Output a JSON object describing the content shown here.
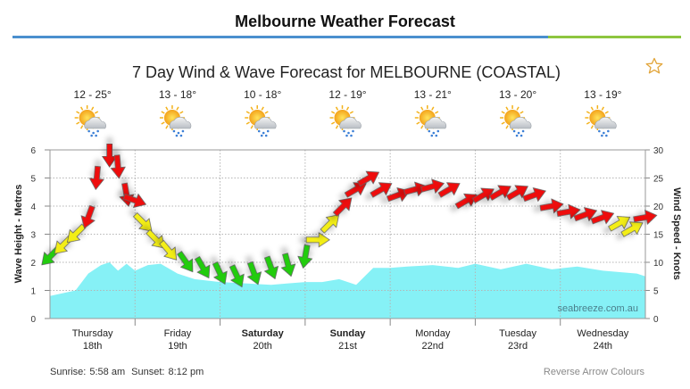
{
  "page": {
    "title": "Melbourne Weather Forecast"
  },
  "footer": {
    "sunrise_label": "Sunrise:",
    "sunrise": "5:58 am",
    "sunset_label": "Sunset:",
    "sunset": "8:12 pm",
    "reverse_link": "Reverse Arrow Colours"
  },
  "colors": {
    "wave_fill": "#7ff0f6",
    "arrow_low": "#22cc11",
    "arrow_mid": "#f3ee18",
    "arrow_high": "#ee1111",
    "title_rule": "#4a8fce",
    "title_rule_accent": "#8dc63f"
  },
  "icons": {
    "favourite": "star-outline-icon",
    "weather": "partly-cloudy-rain-icon"
  },
  "chart_data": {
    "type": "line",
    "title": "7 Day Wind & Wave Forecast for MELBOURNE (COASTAL)",
    "ylabel": "Wave Height - Metres",
    "y2label": "Wind Speed - Knots",
    "ylim": [
      0,
      6
    ],
    "y2lim": [
      0,
      30
    ],
    "yticks": [
      0,
      1,
      2,
      3,
      4,
      5,
      6
    ],
    "y2ticks": [
      0,
      5,
      10,
      15,
      20,
      25,
      30
    ],
    "grid": true,
    "watermark": "seabreeze.com.au",
    "days": [
      {
        "name": "Thursday",
        "date": "18th",
        "temp": "12 - 25°",
        "bold": false
      },
      {
        "name": "Friday",
        "date": "19th",
        "temp": "13 - 18°",
        "bold": false
      },
      {
        "name": "Saturday",
        "date": "20th",
        "temp": "10 - 18°",
        "bold": true
      },
      {
        "name": "Sunday",
        "date": "21st",
        "temp": "12 - 19°",
        "bold": true
      },
      {
        "name": "Monday",
        "date": "22nd",
        "temp": "13 - 21°",
        "bold": false
      },
      {
        "name": "Tuesday",
        "date": "23rd",
        "temp": "13 - 20°",
        "bold": false
      },
      {
        "name": "Wednesday",
        "date": "24th",
        "temp": "13 - 19°",
        "bold": false
      }
    ],
    "wave_height": {
      "x_days": [
        0,
        0.15,
        0.3,
        0.45,
        0.6,
        0.7,
        0.8,
        0.9,
        1.0,
        1.15,
        1.3,
        1.5,
        1.7,
        2.0,
        2.3,
        2.6,
        2.8,
        3.0,
        3.2,
        3.4,
        3.6,
        3.8,
        4.0,
        4.2,
        4.5,
        4.8,
        5.0,
        5.3,
        5.6,
        5.9,
        6.2,
        6.5,
        6.7,
        6.9,
        7.0
      ],
      "values": [
        0.8,
        0.9,
        1.0,
        1.6,
        1.9,
        2.0,
        1.7,
        1.95,
        1.7,
        1.9,
        1.95,
        1.6,
        1.4,
        1.3,
        1.25,
        1.2,
        1.25,
        1.3,
        1.3,
        1.4,
        1.2,
        1.8,
        1.8,
        1.85,
        1.9,
        1.8,
        1.95,
        1.75,
        1.95,
        1.75,
        1.85,
        1.7,
        1.65,
        1.6,
        1.5
      ]
    },
    "wind": {
      "x_days": [
        0.0,
        0.15,
        0.3,
        0.45,
        0.55,
        0.7,
        0.8,
        0.9,
        1.0,
        1.1,
        1.25,
        1.4,
        1.6,
        1.8,
        2.0,
        2.2,
        2.4,
        2.6,
        2.8,
        3.0,
        3.15,
        3.3,
        3.45,
        3.6,
        3.75,
        3.9,
        4.1,
        4.3,
        4.5,
        4.7,
        4.9,
        5.1,
        5.3,
        5.5,
        5.7,
        5.9,
        6.1,
        6.3,
        6.5,
        6.7,
        6.85,
        7.0
      ],
      "knots": [
        11,
        13,
        15,
        18,
        25,
        29,
        27,
        22,
        21,
        17,
        14,
        12,
        10,
        9,
        8,
        7.5,
        8,
        9,
        9.5,
        11,
        14,
        17,
        20,
        23,
        25,
        23,
        22,
        23,
        23.5,
        23,
        21,
        22,
        22.5,
        22.5,
        22,
        20,
        19,
        18.5,
        18,
        17,
        16,
        18
      ],
      "direction_deg": [
        225,
        225,
        225,
        200,
        185,
        180,
        175,
        170,
        110,
        135,
        135,
        140,
        145,
        150,
        155,
        155,
        160,
        160,
        165,
        190,
        90,
        45,
        45,
        60,
        60,
        60,
        70,
        75,
        75,
        60,
        60,
        60,
        60,
        60,
        70,
        80,
        80,
        70,
        70,
        60,
        60,
        80
      ]
    }
  }
}
